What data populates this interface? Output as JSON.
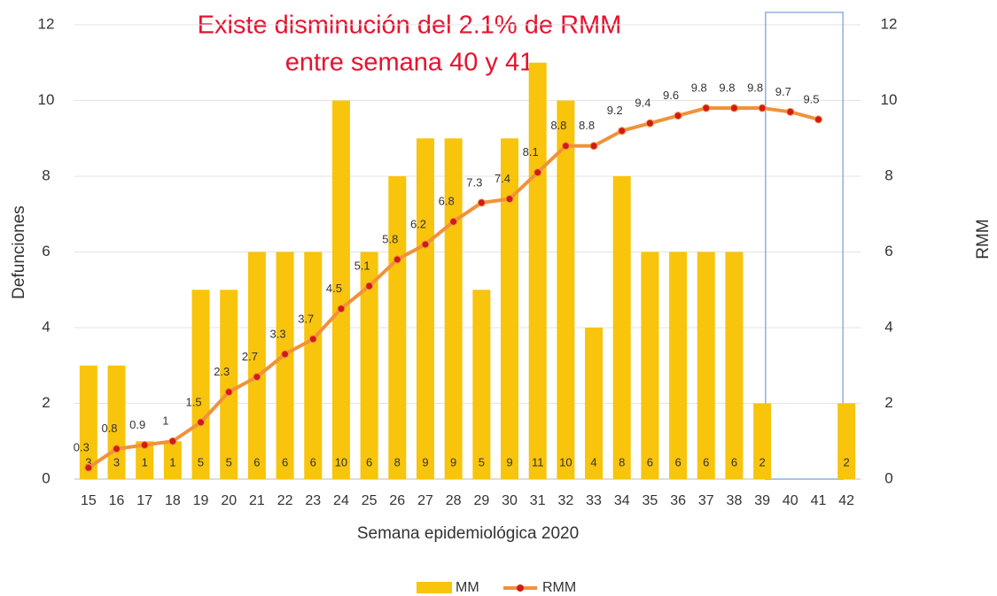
{
  "chart_data": {
    "type": "bar-line",
    "title": [
      "Existe disminución del 2.1% de RMM",
      "entre semana 40 y 41"
    ],
    "x_label": "Semana epidemiológica 2020",
    "y_label": "Defunciones",
    "y2_label": "RMM",
    "categories": [
      "15",
      "16",
      "17",
      "18",
      "19",
      "20",
      "21",
      "22",
      "23",
      "24",
      "25",
      "26",
      "27",
      "28",
      "29",
      "30",
      "31",
      "32",
      "33",
      "34",
      "35",
      "36",
      "37",
      "38",
      "39",
      "40",
      "41",
      "42"
    ],
    "series": [
      {
        "name": "MM",
        "type": "bar",
        "color": "#f8c40c",
        "values": [
          3,
          3,
          1,
          1,
          5,
          5,
          6,
          6,
          6,
          10,
          6,
          8,
          9,
          9,
          5,
          9,
          11,
          10,
          4,
          8,
          6,
          6,
          6,
          6,
          2,
          null,
          null,
          2
        ]
      },
      {
        "name": "RMM",
        "type": "line",
        "axis": "y2",
        "color": "#f0923a",
        "marker_color": "#d21a1a",
        "values": [
          0.3,
          0.8,
          0.9,
          1,
          1.5,
          2.3,
          2.7,
          3.3,
          3.7,
          4.5,
          5.1,
          5.8,
          6.2,
          6.8,
          7.3,
          7.4,
          8.1,
          8.8,
          8.8,
          9.2,
          9.4,
          9.6,
          9.8,
          9.8,
          9.8,
          9.7,
          9.5,
          null
        ]
      }
    ],
    "ylim": [
      0,
      12
    ],
    "yticks": [
      0,
      2,
      4,
      6,
      8,
      10,
      12
    ],
    "y2lim": [
      0,
      12
    ],
    "y2ticks": [
      0,
      2,
      4,
      6,
      8,
      10,
      12
    ],
    "grid": true,
    "legend": "bottom"
  }
}
